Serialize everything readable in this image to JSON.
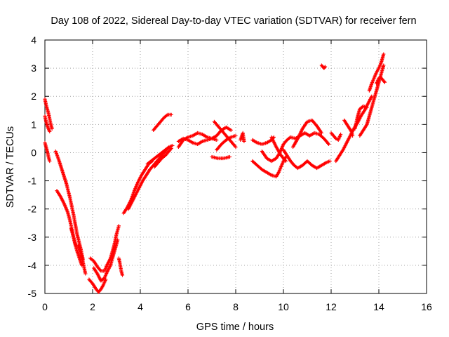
{
  "chart_data": {
    "type": "scatter",
    "title": "Day 108 of 2022, Sidereal Day-to-day VTEC variation (SDTVAR) for receiver fern",
    "xlabel": "GPS time / hours",
    "ylabel": "SDTVAR / TECUs",
    "xlim": [
      0,
      16
    ],
    "ylim": [
      -5,
      4
    ],
    "xticks": [
      0,
      2,
      4,
      6,
      8,
      10,
      12,
      14,
      16
    ],
    "yticks": [
      -5,
      -4,
      -3,
      -2,
      -1,
      0,
      1,
      2,
      3,
      4
    ],
    "grid": true,
    "marker": "plus",
    "series": [
      {
        "name": "SDTVAR",
        "color": "#ff0000",
        "segments": [
          [
            [
              0.0,
              1.3
            ],
            [
              0.05,
              1.1
            ],
            [
              0.1,
              0.95
            ],
            [
              0.15,
              0.85
            ],
            [
              0.2,
              0.75
            ]
          ],
          [
            [
              0.0,
              1.9
            ],
            [
              0.05,
              1.7
            ],
            [
              0.1,
              1.55
            ],
            [
              0.15,
              1.4
            ],
            [
              0.2,
              1.2
            ],
            [
              0.25,
              1.0
            ],
            [
              0.3,
              0.85
            ]
          ],
          [
            [
              0.0,
              0.35
            ],
            [
              0.05,
              0.2
            ],
            [
              0.1,
              0.05
            ],
            [
              0.15,
              -0.15
            ],
            [
              0.2,
              -0.3
            ]
          ],
          [
            [
              0.45,
              0.05
            ],
            [
              0.6,
              -0.3
            ],
            [
              0.75,
              -0.7
            ],
            [
              0.9,
              -1.1
            ],
            [
              1.05,
              -1.6
            ],
            [
              1.2,
              -2.2
            ],
            [
              1.35,
              -2.9
            ],
            [
              1.5,
              -3.4
            ],
            [
              1.6,
              -3.8
            ]
          ],
          [
            [
              0.5,
              -1.35
            ],
            [
              0.65,
              -1.55
            ],
            [
              0.8,
              -1.8
            ],
            [
              0.95,
              -2.1
            ],
            [
              1.05,
              -2.4
            ],
            [
              1.15,
              -2.8
            ],
            [
              1.25,
              -3.2
            ],
            [
              1.35,
              -3.5
            ],
            [
              1.45,
              -3.75
            ],
            [
              1.55,
              -4.0
            ]
          ],
          [
            [
              1.1,
              -2.7
            ],
            [
              1.2,
              -3.0
            ],
            [
              1.3,
              -3.3
            ],
            [
              1.4,
              -3.3
            ],
            [
              1.5,
              -3.55
            ],
            [
              1.6,
              -3.9
            ],
            [
              1.7,
              -4.3
            ]
          ],
          [
            [
              1.85,
              -4.5
            ],
            [
              2.0,
              -4.65
            ],
            [
              2.15,
              -4.85
            ],
            [
              2.25,
              -4.95
            ],
            [
              2.35,
              -4.85
            ],
            [
              2.45,
              -4.7
            ],
            [
              2.55,
              -4.5
            ]
          ],
          [
            [
              1.9,
              -3.75
            ],
            [
              2.05,
              -3.85
            ],
            [
              2.2,
              -4.05
            ],
            [
              2.35,
              -4.2
            ],
            [
              2.5,
              -4.2
            ],
            [
              2.6,
              -4.0
            ],
            [
              2.75,
              -3.75
            ],
            [
              2.9,
              -3.3
            ],
            [
              3.0,
              -2.9
            ],
            [
              3.1,
              -2.6
            ]
          ],
          [
            [
              2.05,
              -4.1
            ],
            [
              2.2,
              -4.3
            ],
            [
              2.35,
              -4.55
            ],
            [
              2.5,
              -4.45
            ],
            [
              2.6,
              -4.25
            ],
            [
              2.75,
              -4.0
            ],
            [
              2.9,
              -3.55
            ],
            [
              3.05,
              -3.1
            ]
          ],
          [
            [
              3.1,
              -3.75
            ],
            [
              3.15,
              -3.95
            ],
            [
              3.2,
              -4.2
            ],
            [
              3.25,
              -4.35
            ]
          ],
          [
            [
              3.3,
              -2.15
            ],
            [
              3.45,
              -1.95
            ],
            [
              3.6,
              -1.7
            ],
            [
              3.75,
              -1.35
            ],
            [
              3.9,
              -1.05
            ],
            [
              4.05,
              -0.8
            ],
            [
              4.2,
              -0.6
            ],
            [
              4.35,
              -0.4
            ],
            [
              4.5,
              -0.3
            ]
          ],
          [
            [
              3.5,
              -2.0
            ],
            [
              3.65,
              -1.75
            ],
            [
              3.8,
              -1.5
            ],
            [
              3.95,
              -1.25
            ],
            [
              4.1,
              -1.0
            ],
            [
              4.25,
              -0.8
            ],
            [
              4.4,
              -0.6
            ],
            [
              4.55,
              -0.45
            ],
            [
              4.7,
              -0.3
            ],
            [
              4.85,
              -0.15
            ],
            [
              5.0,
              0.0
            ],
            [
              5.15,
              0.15
            ]
          ],
          [
            [
              4.3,
              -0.4
            ],
            [
              4.45,
              -0.3
            ],
            [
              4.6,
              -0.2
            ],
            [
              4.75,
              -0.1
            ],
            [
              4.9,
              0.0
            ],
            [
              5.05,
              0.1
            ],
            [
              5.2,
              0.2
            ],
            [
              5.35,
              0.25
            ]
          ],
          [
            [
              4.6,
              -0.5
            ],
            [
              4.75,
              -0.35
            ],
            [
              4.9,
              -0.2
            ],
            [
              5.05,
              -0.1
            ],
            [
              5.2,
              0.05
            ],
            [
              5.3,
              0.15
            ]
          ],
          [
            [
              4.55,
              0.8
            ],
            [
              4.7,
              0.95
            ],
            [
              4.85,
              1.1
            ],
            [
              5.0,
              1.25
            ],
            [
              5.15,
              1.35
            ],
            [
              5.3,
              1.35
            ]
          ],
          [
            [
              5.6,
              0.2
            ],
            [
              5.8,
              0.45
            ],
            [
              6.0,
              0.55
            ],
            [
              6.2,
              0.6
            ],
            [
              6.4,
              0.7
            ],
            [
              6.6,
              0.65
            ],
            [
              6.8,
              0.55
            ],
            [
              7.0,
              0.5
            ],
            [
              7.2,
              0.6
            ],
            [
              7.4,
              0.8
            ],
            [
              7.6,
              0.9
            ],
            [
              7.8,
              0.8
            ]
          ],
          [
            [
              5.6,
              0.4
            ],
            [
              5.8,
              0.5
            ],
            [
              6.0,
              0.45
            ],
            [
              6.2,
              0.35
            ],
            [
              6.4,
              0.3
            ],
            [
              6.6,
              0.4
            ],
            [
              6.8,
              0.45
            ],
            [
              7.0,
              0.5
            ],
            [
              7.2,
              0.45
            ]
          ],
          [
            [
              7.1,
              1.1
            ],
            [
              7.3,
              0.9
            ],
            [
              7.5,
              0.7
            ],
            [
              7.7,
              0.5
            ],
            [
              7.9,
              0.3
            ],
            [
              8.0,
              0.2
            ]
          ],
          [
            [
              7.2,
              0.1
            ],
            [
              7.4,
              0.3
            ],
            [
              7.6,
              0.45
            ],
            [
              7.8,
              0.55
            ],
            [
              8.0,
              0.6
            ]
          ],
          [
            [
              7.0,
              -0.15
            ],
            [
              7.25,
              -0.2
            ],
            [
              7.5,
              -0.2
            ],
            [
              7.75,
              -0.15
            ]
          ],
          [
            [
              8.2,
              0.45
            ],
            [
              8.3,
              0.7
            ],
            [
              8.35,
              0.4
            ]
          ],
          [
            [
              8.7,
              0.45
            ],
            [
              8.9,
              0.35
            ],
            [
              9.1,
              0.3
            ],
            [
              9.3,
              0.35
            ],
            [
              9.5,
              0.45
            ],
            [
              9.6,
              0.55
            ]
          ],
          [
            [
              8.7,
              -0.3
            ],
            [
              8.9,
              -0.45
            ],
            [
              9.1,
              -0.6
            ],
            [
              9.3,
              -0.7
            ],
            [
              9.5,
              -0.8
            ],
            [
              9.7,
              -0.85
            ],
            [
              9.8,
              -0.7
            ],
            [
              9.9,
              -0.5
            ],
            [
              10.0,
              -0.3
            ],
            [
              10.1,
              -0.15
            ]
          ],
          [
            [
              9.1,
              0.05
            ],
            [
              9.3,
              -0.2
            ],
            [
              9.5,
              -0.3
            ],
            [
              9.7,
              -0.2
            ],
            [
              9.85,
              0.0
            ],
            [
              10.0,
              0.3
            ],
            [
              10.15,
              0.45
            ],
            [
              10.3,
              0.55
            ],
            [
              10.5,
              0.5
            ],
            [
              10.7,
              0.6
            ],
            [
              10.9,
              0.7
            ],
            [
              11.1,
              0.6
            ],
            [
              11.3,
              0.7
            ],
            [
              11.5,
              0.65
            ],
            [
              11.7,
              0.5
            ],
            [
              11.9,
              0.3
            ]
          ],
          [
            [
              10.0,
              0.1
            ],
            [
              10.15,
              -0.1
            ],
            [
              10.3,
              -0.3
            ],
            [
              10.45,
              -0.45
            ],
            [
              10.6,
              -0.55
            ],
            [
              10.8,
              -0.45
            ],
            [
              11.0,
              -0.3
            ],
            [
              11.2,
              -0.45
            ],
            [
              11.4,
              -0.55
            ],
            [
              11.6,
              -0.45
            ],
            [
              11.8,
              -0.35
            ],
            [
              11.95,
              -0.3
            ]
          ],
          [
            [
              10.4,
              0.2
            ],
            [
              10.6,
              0.5
            ],
            [
              10.8,
              0.85
            ],
            [
              11.0,
              1.1
            ],
            [
              11.2,
              1.15
            ],
            [
              11.4,
              0.95
            ],
            [
              11.6,
              0.7
            ]
          ],
          [
            [
              9.5,
              0.55
            ],
            [
              9.7,
              0.2
            ],
            [
              9.9,
              -0.1
            ],
            [
              10.1,
              -0.3
            ]
          ],
          [
            [
              11.6,
              3.1
            ],
            [
              11.65,
              3.05
            ],
            [
              11.7,
              3.0
            ],
            [
              11.75,
              3.05
            ]
          ],
          [
            [
              12.0,
              0.7
            ],
            [
              12.1,
              0.6
            ],
            [
              12.2,
              0.5
            ],
            [
              12.3,
              0.45
            ],
            [
              12.4,
              0.65
            ]
          ],
          [
            [
              12.2,
              -0.3
            ],
            [
              12.35,
              -0.1
            ],
            [
              12.5,
              0.1
            ],
            [
              12.65,
              0.35
            ],
            [
              12.8,
              0.6
            ],
            [
              12.95,
              0.85
            ],
            [
              13.1,
              1.05
            ],
            [
              13.25,
              1.3
            ],
            [
              13.4,
              1.5
            ],
            [
              13.55,
              1.75
            ],
            [
              13.7,
              2.0
            ]
          ],
          [
            [
              12.55,
              1.15
            ],
            [
              12.7,
              0.95
            ],
            [
              12.85,
              0.75
            ],
            [
              12.9,
              0.6
            ]
          ],
          [
            [
              13.0,
              0.85
            ],
            [
              13.1,
              1.25
            ],
            [
              13.2,
              1.55
            ],
            [
              13.35,
              1.65
            ],
            [
              13.5,
              1.6
            ]
          ],
          [
            [
              13.2,
              0.6
            ],
            [
              13.35,
              0.8
            ],
            [
              13.5,
              1.0
            ],
            [
              13.6,
              1.3
            ],
            [
              13.7,
              1.6
            ],
            [
              13.8,
              1.9
            ],
            [
              13.9,
              2.2
            ],
            [
              14.0,
              2.5
            ],
            [
              14.1,
              2.8
            ],
            [
              14.2,
              3.1
            ]
          ],
          [
            [
              13.6,
              2.2
            ],
            [
              13.7,
              2.45
            ],
            [
              13.8,
              2.65
            ],
            [
              13.9,
              2.85
            ],
            [
              14.0,
              3.0
            ],
            [
              14.1,
              3.2
            ],
            [
              14.2,
              3.5
            ]
          ],
          [
            [
              13.9,
              2.45
            ],
            [
              14.0,
              2.65
            ],
            [
              14.1,
              2.65
            ],
            [
              14.2,
              2.55
            ],
            [
              14.25,
              2.5
            ]
          ]
        ]
      }
    ]
  }
}
